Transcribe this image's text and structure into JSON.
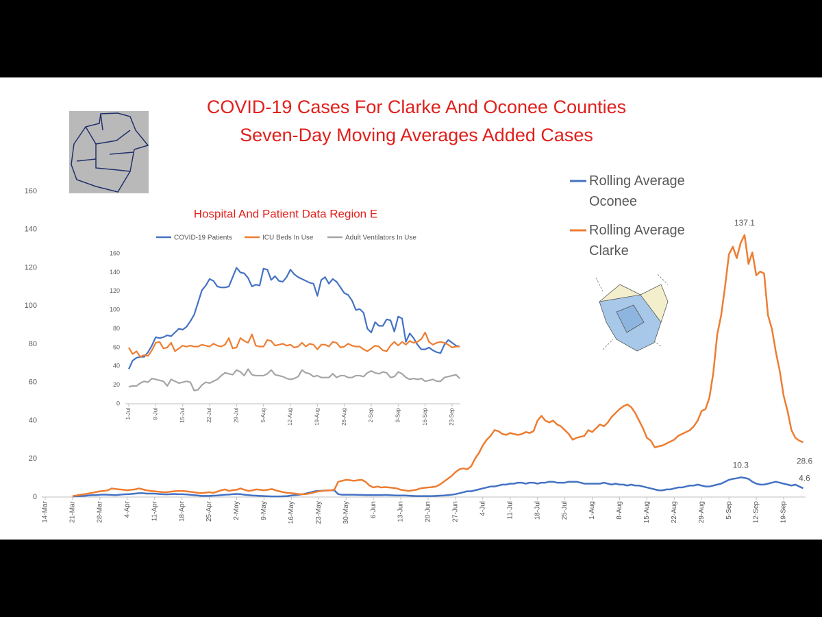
{
  "chart_data": [
    {
      "type": "line",
      "title": "COVID-19 Cases For Clarke And Oconee Counties",
      "subtitle": "Seven-Day Moving Averages Added Cases",
      "categories": [
        "14-Mar",
        null,
        null,
        null,
        null,
        null,
        null,
        "21-Mar",
        null,
        null,
        null,
        null,
        null,
        null,
        "28-Mar",
        null,
        null,
        null,
        null,
        null,
        null,
        "4-Apr",
        null,
        null,
        null,
        null,
        null,
        null,
        "11-Apr",
        null,
        null,
        null,
        null,
        null,
        null,
        "18-Apr",
        null,
        null,
        null,
        null,
        null,
        null,
        "25-Apr",
        null,
        null,
        null,
        null,
        null,
        null,
        "2-May",
        null,
        null,
        null,
        null,
        null,
        null,
        "9-May",
        null,
        null,
        null,
        null,
        null,
        null,
        "16-May",
        null,
        null,
        null,
        null,
        null,
        null,
        "23-May",
        null,
        null,
        null,
        null,
        null,
        null,
        "30-May",
        null,
        null,
        null,
        null,
        null,
        null,
        "6-Jun",
        null,
        null,
        null,
        null,
        null,
        null,
        "13-Jun",
        null,
        null,
        null,
        null,
        null,
        null,
        "20-Jun",
        null,
        null,
        null,
        null,
        null,
        null,
        "27-Jun",
        null,
        null,
        null,
        null,
        null,
        null,
        "4-Jul",
        null,
        null,
        null,
        null,
        null,
        null,
        "11-Jul",
        null,
        null,
        null,
        null,
        null,
        null,
        "18-Jul",
        null,
        null,
        null,
        null,
        null,
        null,
        "25-Jul",
        null,
        null,
        null,
        null,
        null,
        null,
        "1-Aug",
        null,
        null,
        null,
        null,
        null,
        null,
        "8-Aug",
        null,
        null,
        null,
        null,
        null,
        null,
        "15-Aug",
        null,
        null,
        null,
        null,
        null,
        null,
        "22-Aug",
        null,
        null,
        null,
        null,
        null,
        null,
        "29-Aug",
        null,
        null,
        null,
        null,
        null,
        null,
        "5-Sep",
        null,
        null,
        null,
        null,
        null,
        null,
        "12-Sep",
        null,
        null,
        null,
        null,
        null,
        null,
        "19-Sep",
        null,
        null,
        null,
        null,
        null
      ],
      "series": [
        {
          "name": "Rolling Average Oconee",
          "color": "#4472c4",
          "values": [
            null,
            null,
            null,
            null,
            null,
            null,
            null,
            0.3,
            0.4,
            0.5,
            0.6,
            0.8,
            1,
            1,
            1.2,
            1.3,
            1.2,
            1.1,
            1,
            1.2,
            1.4,
            1.5,
            1.6,
            1.8,
            2,
            2,
            1.8,
            1.8,
            1.8,
            1.6,
            1.5,
            1.4,
            1.5,
            1.6,
            1.5,
            1.5,
            1.4,
            1.2,
            1,
            0.8,
            0.6,
            0.6,
            0.6,
            0.7,
            0.8,
            1,
            1.2,
            1.3,
            1.5,
            1.6,
            1.5,
            1.2,
            1,
            0.8,
            0.7,
            0.6,
            0.5,
            0.4,
            0.3,
            0.3,
            0.3,
            0.4,
            0.5,
            0.8,
            1,
            1.2,
            1.5,
            2,
            2.5,
            3,
            3.2,
            3.3,
            3.4,
            3.5,
            3.5,
            1.5,
            1.2,
            1.2,
            1.2,
            1.2,
            1.1,
            1.1,
            1,
            1,
            1,
            1,
            1,
            1.1,
            1,
            0.9,
            0.8,
            0.8,
            0.8,
            0.7,
            0.6,
            0.5,
            0.5,
            0.5,
            0.5,
            0.5,
            0.6,
            0.7,
            0.8,
            1,
            1.2,
            1.5,
            2,
            2.5,
            3,
            3,
            3.5,
            4,
            4.5,
            5,
            5.5,
            5.5,
            6,
            6.5,
            6.5,
            7,
            7,
            7.5,
            7.5,
            7,
            7.5,
            7.5,
            7,
            7.5,
            7.5,
            8,
            8,
            7.5,
            7.5,
            7.5,
            8,
            8,
            8,
            7.5,
            7,
            7,
            7,
            7,
            7,
            7.5,
            7,
            6.5,
            7,
            6.5,
            6.5,
            6,
            6.5,
            6,
            6,
            5.5,
            5,
            4.5,
            4,
            3.5,
            3.5,
            4,
            4,
            4.5,
            5,
            5,
            5.5,
            6,
            6,
            6.5,
            6,
            5.5,
            5.5,
            6,
            6.5,
            7,
            8,
            9,
            9.5,
            9.8,
            10.3,
            10,
            9.5,
            8,
            7,
            6.5,
            6.5,
            7,
            7.5,
            8,
            7.5,
            7,
            6.5,
            6,
            6.5,
            5.5,
            4.6
          ]
        },
        {
          "name": "Rolling Average Clarke",
          "color": "#ed7d31",
          "values": [
            null,
            null,
            null,
            null,
            null,
            null,
            null,
            0.5,
            0.8,
            1.2,
            1.5,
            1.8,
            2.2,
            2.6,
            3,
            3.2,
            3.5,
            4.5,
            4.2,
            4,
            3.8,
            3.5,
            3.8,
            4,
            4.5,
            4,
            3.5,
            3.2,
            3,
            2.8,
            2.6,
            2.5,
            2.8,
            3,
            3.2,
            3.2,
            3,
            2.8,
            2.5,
            2.2,
            2,
            2.3,
            2.5,
            2.2,
            2.8,
            3.5,
            4,
            3.2,
            3.6,
            3.8,
            4.5,
            3.8,
            3.2,
            3.5,
            4,
            3.8,
            3.5,
            3.8,
            4.2,
            3.5,
            3,
            2.5,
            2.2,
            2,
            1.8,
            1.5,
            1.5,
            1.6,
            2,
            2.5,
            3,
            3.2,
            3.5,
            3.5,
            3.8,
            8,
            8.5,
            9,
            8.8,
            8.5,
            8.8,
            9,
            8,
            6,
            5,
            5.5,
            5,
            5.2,
            5,
            4.8,
            4.5,
            3.8,
            3.5,
            3.2,
            3.5,
            3.8,
            4.5,
            4.8,
            5,
            5.2,
            5.5,
            6.5,
            8,
            9.5,
            11,
            13,
            14.5,
            15,
            14.5,
            16,
            20,
            23,
            27,
            30,
            32,
            35,
            34.5,
            33,
            32.5,
            33.5,
            33,
            32.5,
            33,
            34,
            33.5,
            34.5,
            40,
            42.5,
            40,
            39,
            40,
            38,
            37,
            35,
            33,
            30,
            31,
            31.5,
            32,
            35,
            34,
            36,
            38,
            37,
            39,
            42,
            44,
            46,
            47.5,
            48.5,
            47,
            44,
            40,
            36,
            31,
            29.5,
            26,
            26.5,
            27,
            28,
            29,
            30,
            32,
            33,
            34,
            35,
            37,
            40,
            45,
            46,
            52,
            65,
            85,
            95,
            110,
            127,
            131,
            125,
            133,
            137.1,
            122,
            128,
            116,
            118,
            117,
            95,
            88,
            76,
            66,
            53,
            45,
            35,
            31,
            29.5,
            28.6
          ]
        }
      ],
      "ylim": [
        0,
        160
      ],
      "yticks": [
        0,
        20,
        40,
        60,
        80,
        100,
        120,
        140,
        160
      ],
      "data_labels": true
    },
    {
      "type": "line",
      "title": "Hospital And Patient Data Region E",
      "categories": [
        "1-Jul",
        null,
        null,
        null,
        null,
        null,
        null,
        "8-Jul",
        null,
        null,
        null,
        null,
        null,
        null,
        "15-Jul",
        null,
        null,
        null,
        null,
        null,
        null,
        "22-Jul",
        null,
        null,
        null,
        null,
        null,
        null,
        "29-Jul",
        null,
        null,
        null,
        null,
        null,
        null,
        "5-Aug",
        null,
        null,
        null,
        null,
        null,
        null,
        "12-Aug",
        null,
        null,
        null,
        null,
        null,
        null,
        "19-Aug",
        null,
        null,
        null,
        null,
        null,
        null,
        "26-Aug",
        null,
        null,
        null,
        null,
        null,
        null,
        "2-Sep",
        null,
        null,
        null,
        null,
        null,
        null,
        "9-Sep",
        null,
        null,
        null,
        null,
        null,
        null,
        "16-Sep",
        null,
        null,
        null,
        null,
        null,
        null,
        "23-Sep",
        null,
        null
      ],
      "series": [
        {
          "name": "COVID-19 Patients",
          "color": "#4472c4",
          "values": [
            37,
            46,
            49,
            50,
            50,
            55,
            62,
            71,
            70,
            71,
            73,
            72,
            76,
            80,
            79,
            82,
            88,
            95,
            108,
            121,
            126,
            133,
            131,
            125,
            124,
            124,
            125,
            135,
            145,
            140,
            139,
            134,
            125,
            127,
            126,
            144,
            143,
            132,
            136,
            131,
            130,
            135,
            143,
            138,
            135,
            133,
            131,
            129,
            128,
            115,
            132,
            135,
            128,
            133,
            130,
            124,
            118,
            116,
            110,
            100,
            101,
            97,
            80,
            76,
            87,
            83,
            83,
            90,
            89,
            77,
            93,
            91,
            66,
            75,
            70,
            63,
            58,
            58,
            60,
            57,
            55,
            54,
            63,
            68,
            65,
            62,
            61
          ]
        },
        {
          "name": "ICU Beds In Use",
          "color": "#ed7d31",
          "values": [
            60,
            53,
            56,
            50,
            52,
            51,
            57,
            65,
            66,
            59,
            60,
            65,
            56,
            59,
            62,
            61,
            62,
            61,
            61,
            63,
            62,
            61,
            64,
            62,
            61,
            63,
            70,
            59,
            60,
            70,
            67,
            65,
            74,
            62,
            61,
            61,
            68,
            67,
            62,
            63,
            64,
            62,
            63,
            60,
            61,
            65,
            61,
            64,
            63,
            58,
            63,
            63,
            61,
            66,
            65,
            60,
            61,
            64,
            62,
            61,
            61,
            58,
            56,
            59,
            62,
            61,
            57,
            56,
            62,
            66,
            62,
            66,
            63,
            67,
            65,
            66,
            69,
            76,
            66,
            63,
            65,
            66,
            65,
            63,
            60,
            61,
            61
          ]
        },
        {
          "name": "Adult Ventilators In Use",
          "color": "#a5a5a5",
          "values": [
            18,
            19,
            19,
            22,
            24,
            23,
            27,
            26,
            25,
            24,
            19,
            26,
            24,
            22,
            23,
            24,
            23,
            14,
            15,
            20,
            23,
            22,
            24,
            26,
            30,
            33,
            32,
            31,
            36,
            34,
            30,
            37,
            31,
            30,
            30,
            30,
            32,
            36,
            31,
            30,
            29,
            27,
            26,
            27,
            29,
            36,
            33,
            32,
            29,
            30,
            28,
            28,
            28,
            32,
            28,
            30,
            30,
            28,
            28,
            30,
            30,
            29,
            33,
            35,
            33,
            32,
            34,
            33,
            28,
            29,
            34,
            32,
            28,
            26,
            27,
            26,
            27,
            24,
            25,
            26,
            24,
            24,
            28,
            29,
            30,
            31,
            27
          ]
        }
      ],
      "ylim": [
        0,
        160
      ],
      "yticks": [
        0,
        20,
        40,
        60,
        80,
        100,
        120,
        140,
        160
      ]
    }
  ]
}
